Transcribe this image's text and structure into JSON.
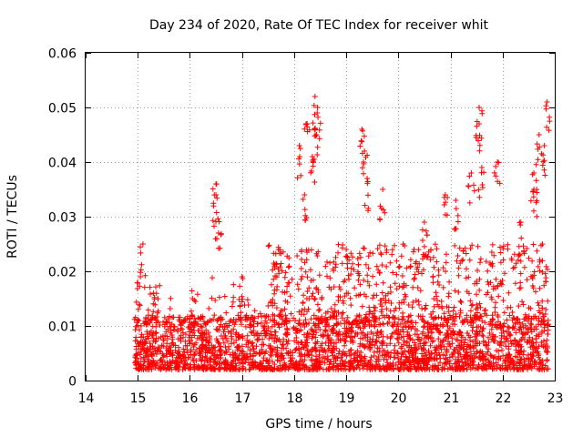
{
  "chart_data": {
    "type": "scatter",
    "title": "Day 234 of 2020, Rate Of TEC Index for receiver whit",
    "xlabel": "GPS time / hours",
    "ylabel": "ROTI / TECUs",
    "xlim": [
      14,
      23
    ],
    "ylim": [
      0,
      0.06
    ],
    "xticks": [
      "14",
      "15",
      "16",
      "17",
      "18",
      "19",
      "20",
      "21",
      "22",
      "23"
    ],
    "yticks": [
      "0",
      "0.01",
      "0.02",
      "0.03",
      "0.04",
      "0.05",
      "0.06"
    ],
    "grid": true,
    "marker": "+",
    "color": "#ff0000",
    "series": [
      {
        "name": "ROTI",
        "x_range": [
          14.93,
          22.88
        ],
        "typical_range": [
          0.002,
          0.012
        ],
        "notable_points": [
          {
            "x": 15.1,
            "y": 0.025
          },
          {
            "x": 15.05,
            "y": 0.019
          },
          {
            "x": 15.3,
            "y": 0.016
          },
          {
            "x": 16.05,
            "y": 0.015
          },
          {
            "x": 16.5,
            "y": 0.036
          },
          {
            "x": 16.5,
            "y": 0.034
          },
          {
            "x": 16.55,
            "y": 0.027
          },
          {
            "x": 17.0,
            "y": 0.019
          },
          {
            "x": 17.7,
            "y": 0.024
          },
          {
            "x": 18.1,
            "y": 0.043
          },
          {
            "x": 18.25,
            "y": 0.047
          },
          {
            "x": 18.4,
            "y": 0.052
          },
          {
            "x": 18.45,
            "y": 0.05
          },
          {
            "x": 18.4,
            "y": 0.046
          },
          {
            "x": 18.2,
            "y": 0.034
          },
          {
            "x": 18.35,
            "y": 0.041
          },
          {
            "x": 19.0,
            "y": 0.024
          },
          {
            "x": 19.3,
            "y": 0.046
          },
          {
            "x": 19.35,
            "y": 0.042
          },
          {
            "x": 19.4,
            "y": 0.037
          },
          {
            "x": 19.7,
            "y": 0.035
          },
          {
            "x": 20.3,
            "y": 0.024
          },
          {
            "x": 20.5,
            "y": 0.029
          },
          {
            "x": 20.9,
            "y": 0.034
          },
          {
            "x": 21.1,
            "y": 0.033
          },
          {
            "x": 21.4,
            "y": 0.038
          },
          {
            "x": 21.55,
            "y": 0.05
          },
          {
            "x": 21.55,
            "y": 0.047
          },
          {
            "x": 21.6,
            "y": 0.039
          },
          {
            "x": 21.9,
            "y": 0.04
          },
          {
            "x": 22.35,
            "y": 0.029
          },
          {
            "x": 22.6,
            "y": 0.035
          },
          {
            "x": 22.7,
            "y": 0.045
          },
          {
            "x": 22.85,
            "y": 0.051
          },
          {
            "x": 22.8,
            "y": 0.043
          },
          {
            "x": 22.6,
            "y": 0.038
          }
        ]
      }
    ]
  }
}
